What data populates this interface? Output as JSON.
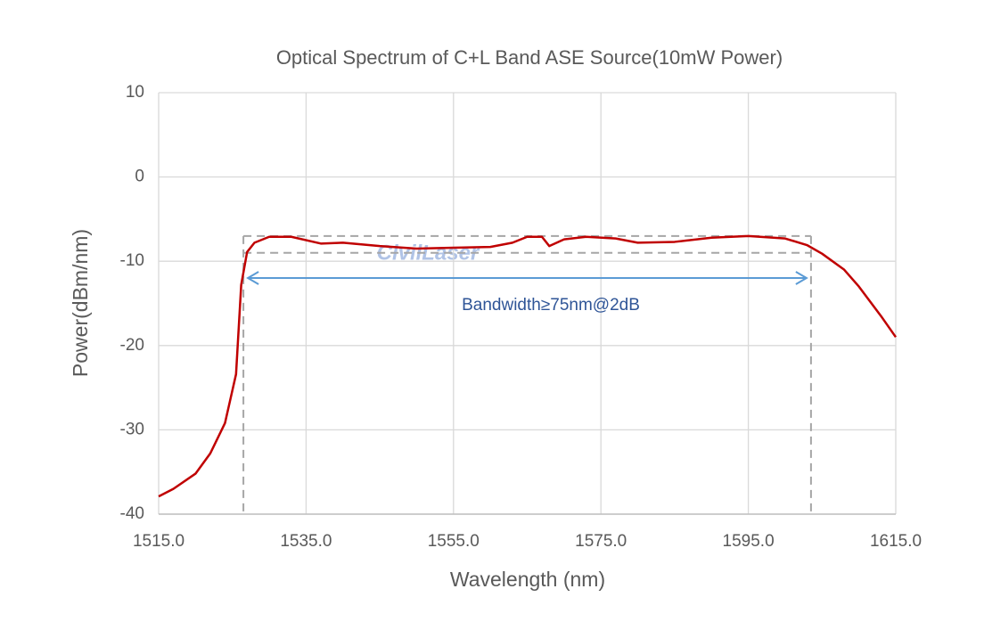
{
  "chart_data": {
    "type": "line",
    "title": "Optical Spectrum of C+L Band ASE Source(10mW Power)",
    "xlabel": "Wavelength (nm)",
    "ylabel": "Power(dBm/nm)",
    "x": [
      1515,
      1517,
      1520,
      1522,
      1524,
      1525.5,
      1526.2,
      1527,
      1528,
      1530,
      1533,
      1537,
      1540,
      1545,
      1550,
      1555,
      1560,
      1563,
      1565,
      1567,
      1568,
      1570,
      1573,
      1577,
      1580,
      1585,
      1590,
      1595,
      1600,
      1603,
      1605,
      1608,
      1610,
      1613,
      1615
    ],
    "values": [
      -37.9,
      -37.0,
      -35.2,
      -32.8,
      -29.2,
      -23.4,
      -12.8,
      -8.9,
      -7.8,
      -7.1,
      -7.1,
      -7.9,
      -7.8,
      -8.2,
      -8.5,
      -8.4,
      -8.3,
      -7.8,
      -7.1,
      -7.1,
      -8.2,
      -7.4,
      -7.1,
      -7.3,
      -7.8,
      -7.7,
      -7.2,
      -7.0,
      -7.3,
      -8.1,
      -9.1,
      -11.0,
      -13.0,
      -16.5,
      -19.0
    ],
    "color": "#c00000",
    "xlim": [
      1515,
      1615
    ],
    "ylim": [
      -40,
      10
    ],
    "xticks": [
      {
        "value": 1515,
        "label": "1515.0"
      },
      {
        "value": 1535,
        "label": "1535.0"
      },
      {
        "value": 1555,
        "label": "1555.0"
      },
      {
        "value": 1575,
        "label": "1575.0"
      },
      {
        "value": 1595,
        "label": "1595.0"
      },
      {
        "value": 1615,
        "label": "1615.0"
      }
    ],
    "yticks": [
      10,
      0,
      -10,
      -20,
      -30,
      -40
    ],
    "grid": true,
    "bandwidth_range": [
      1526.5,
      1603.5
    ],
    "band_levels": [
      -7,
      -9
    ],
    "annotation": "Bandwidth≥75nm@2dB",
    "annotation_color": "#2f5597",
    "arrow_color": "#5b9bd5",
    "watermark": "CivilLaser"
  }
}
